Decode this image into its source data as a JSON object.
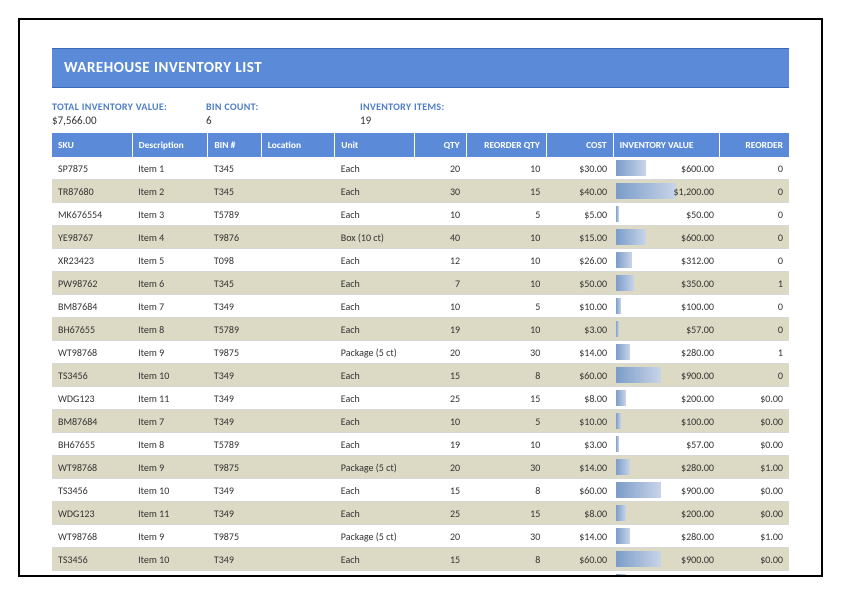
{
  "title": "WAREHOUSE INVENTORY LIST",
  "summary": {
    "total_label": "TOTAL INVENTORY VALUE:",
    "total_value": "$7,566.00",
    "bin_label": "BIN COUNT:",
    "bin_value": "6",
    "items_label": "INVENTORY ITEMS:",
    "items_value": "19"
  },
  "columns": [
    "SKU",
    "Description",
    "BIN #",
    "Location",
    "Unit",
    "QTY",
    "REORDER QTY",
    "COST",
    "INVENTORY VALUE",
    "REORDER"
  ],
  "max_inv": 1200,
  "rows": [
    {
      "sku": "SP7875",
      "desc": "Item 1",
      "bin": "T345",
      "loc": "",
      "unit": "Each",
      "qty": "20",
      "reoq": "10",
      "cost": "$30.00",
      "inv": "$600.00",
      "inv_num": 600,
      "reo": "0",
      "alt": false
    },
    {
      "sku": "TR87680",
      "desc": "Item 2",
      "bin": "T345",
      "loc": "",
      "unit": "Each",
      "qty": "30",
      "reoq": "15",
      "cost": "$40.00",
      "inv": "$1,200.00",
      "inv_num": 1200,
      "reo": "0",
      "alt": true
    },
    {
      "sku": "MK676554",
      "desc": "Item 3",
      "bin": "T5789",
      "loc": "",
      "unit": "Each",
      "qty": "10",
      "reoq": "5",
      "cost": "$5.00",
      "inv": "$50.00",
      "inv_num": 50,
      "reo": "0",
      "alt": false
    },
    {
      "sku": "YE98767",
      "desc": "Item 4",
      "bin": "T9876",
      "loc": "",
      "unit": "Box (10 ct)",
      "qty": "40",
      "reoq": "10",
      "cost": "$15.00",
      "inv": "$600.00",
      "inv_num": 600,
      "reo": "0",
      "alt": true
    },
    {
      "sku": "XR23423",
      "desc": "Item 5",
      "bin": "T098",
      "loc": "",
      "unit": "Each",
      "qty": "12",
      "reoq": "10",
      "cost": "$26.00",
      "inv": "$312.00",
      "inv_num": 312,
      "reo": "0",
      "alt": false
    },
    {
      "sku": "PW98762",
      "desc": "Item 6",
      "bin": "T345",
      "loc": "",
      "unit": "Each",
      "qty": "7",
      "reoq": "10",
      "cost": "$50.00",
      "inv": "$350.00",
      "inv_num": 350,
      "reo": "1",
      "alt": true
    },
    {
      "sku": "BM87684",
      "desc": "Item 7",
      "bin": "T349",
      "loc": "",
      "unit": "Each",
      "qty": "10",
      "reoq": "5",
      "cost": "$10.00",
      "inv": "$100.00",
      "inv_num": 100,
      "reo": "0",
      "alt": false
    },
    {
      "sku": "BH67655",
      "desc": "Item 8",
      "bin": "T5789",
      "loc": "",
      "unit": "Each",
      "qty": "19",
      "reoq": "10",
      "cost": "$3.00",
      "inv": "$57.00",
      "inv_num": 57,
      "reo": "0",
      "alt": true
    },
    {
      "sku": "WT98768",
      "desc": "Item 9",
      "bin": "T9875",
      "loc": "",
      "unit": "Package (5 ct)",
      "qty": "20",
      "reoq": "30",
      "cost": "$14.00",
      "inv": "$280.00",
      "inv_num": 280,
      "reo": "1",
      "alt": false
    },
    {
      "sku": "TS3456",
      "desc": "Item 10",
      "bin": "T349",
      "loc": "",
      "unit": "Each",
      "qty": "15",
      "reoq": "8",
      "cost": "$60.00",
      "inv": "$900.00",
      "inv_num": 900,
      "reo": "0",
      "alt": true
    },
    {
      "sku": "WDG123",
      "desc": "Item 11",
      "bin": "T349",
      "loc": "",
      "unit": "Each",
      "qty": "25",
      "reoq": "15",
      "cost": "$8.00",
      "inv": "$200.00",
      "inv_num": 200,
      "reo": "$0.00",
      "alt": false
    },
    {
      "sku": "BM87684",
      "desc": "Item 7",
      "bin": "T349",
      "loc": "",
      "unit": "Each",
      "qty": "10",
      "reoq": "5",
      "cost": "$10.00",
      "inv": "$100.00",
      "inv_num": 100,
      "reo": "$0.00",
      "alt": true
    },
    {
      "sku": "BH67655",
      "desc": "Item 8",
      "bin": "T5789",
      "loc": "",
      "unit": "Each",
      "qty": "19",
      "reoq": "10",
      "cost": "$3.00",
      "inv": "$57.00",
      "inv_num": 57,
      "reo": "$0.00",
      "alt": false
    },
    {
      "sku": "WT98768",
      "desc": "Item 9",
      "bin": "T9875",
      "loc": "",
      "unit": "Package (5 ct)",
      "qty": "20",
      "reoq": "30",
      "cost": "$14.00",
      "inv": "$280.00",
      "inv_num": 280,
      "reo": "$1.00",
      "alt": true
    },
    {
      "sku": "TS3456",
      "desc": "Item 10",
      "bin": "T349",
      "loc": "",
      "unit": "Each",
      "qty": "15",
      "reoq": "8",
      "cost": "$60.00",
      "inv": "$900.00",
      "inv_num": 900,
      "reo": "$0.00",
      "alt": false
    },
    {
      "sku": "WDG123",
      "desc": "Item 11",
      "bin": "T349",
      "loc": "",
      "unit": "Each",
      "qty": "25",
      "reoq": "15",
      "cost": "$8.00",
      "inv": "$200.00",
      "inv_num": 200,
      "reo": "$0.00",
      "alt": true
    },
    {
      "sku": "WT98768",
      "desc": "Item 9",
      "bin": "T9875",
      "loc": "",
      "unit": "Package (5 ct)",
      "qty": "20",
      "reoq": "30",
      "cost": "$14.00",
      "inv": "$280.00",
      "inv_num": 280,
      "reo": "$1.00",
      "alt": false
    },
    {
      "sku": "TS3456",
      "desc": "Item 10",
      "bin": "T349",
      "loc": "",
      "unit": "Each",
      "qty": "15",
      "reoq": "8",
      "cost": "$60.00",
      "inv": "$900.00",
      "inv_num": 900,
      "reo": "$0.00",
      "alt": true
    },
    {
      "sku": "WDG123",
      "desc": "Item 11",
      "bin": "T349",
      "loc": "",
      "unit": "Each",
      "qty": "25",
      "reoq": "15",
      "cost": "$8.00",
      "inv": "$200.00",
      "inv_num": 200,
      "reo": "$0.00",
      "alt": false
    }
  ]
}
